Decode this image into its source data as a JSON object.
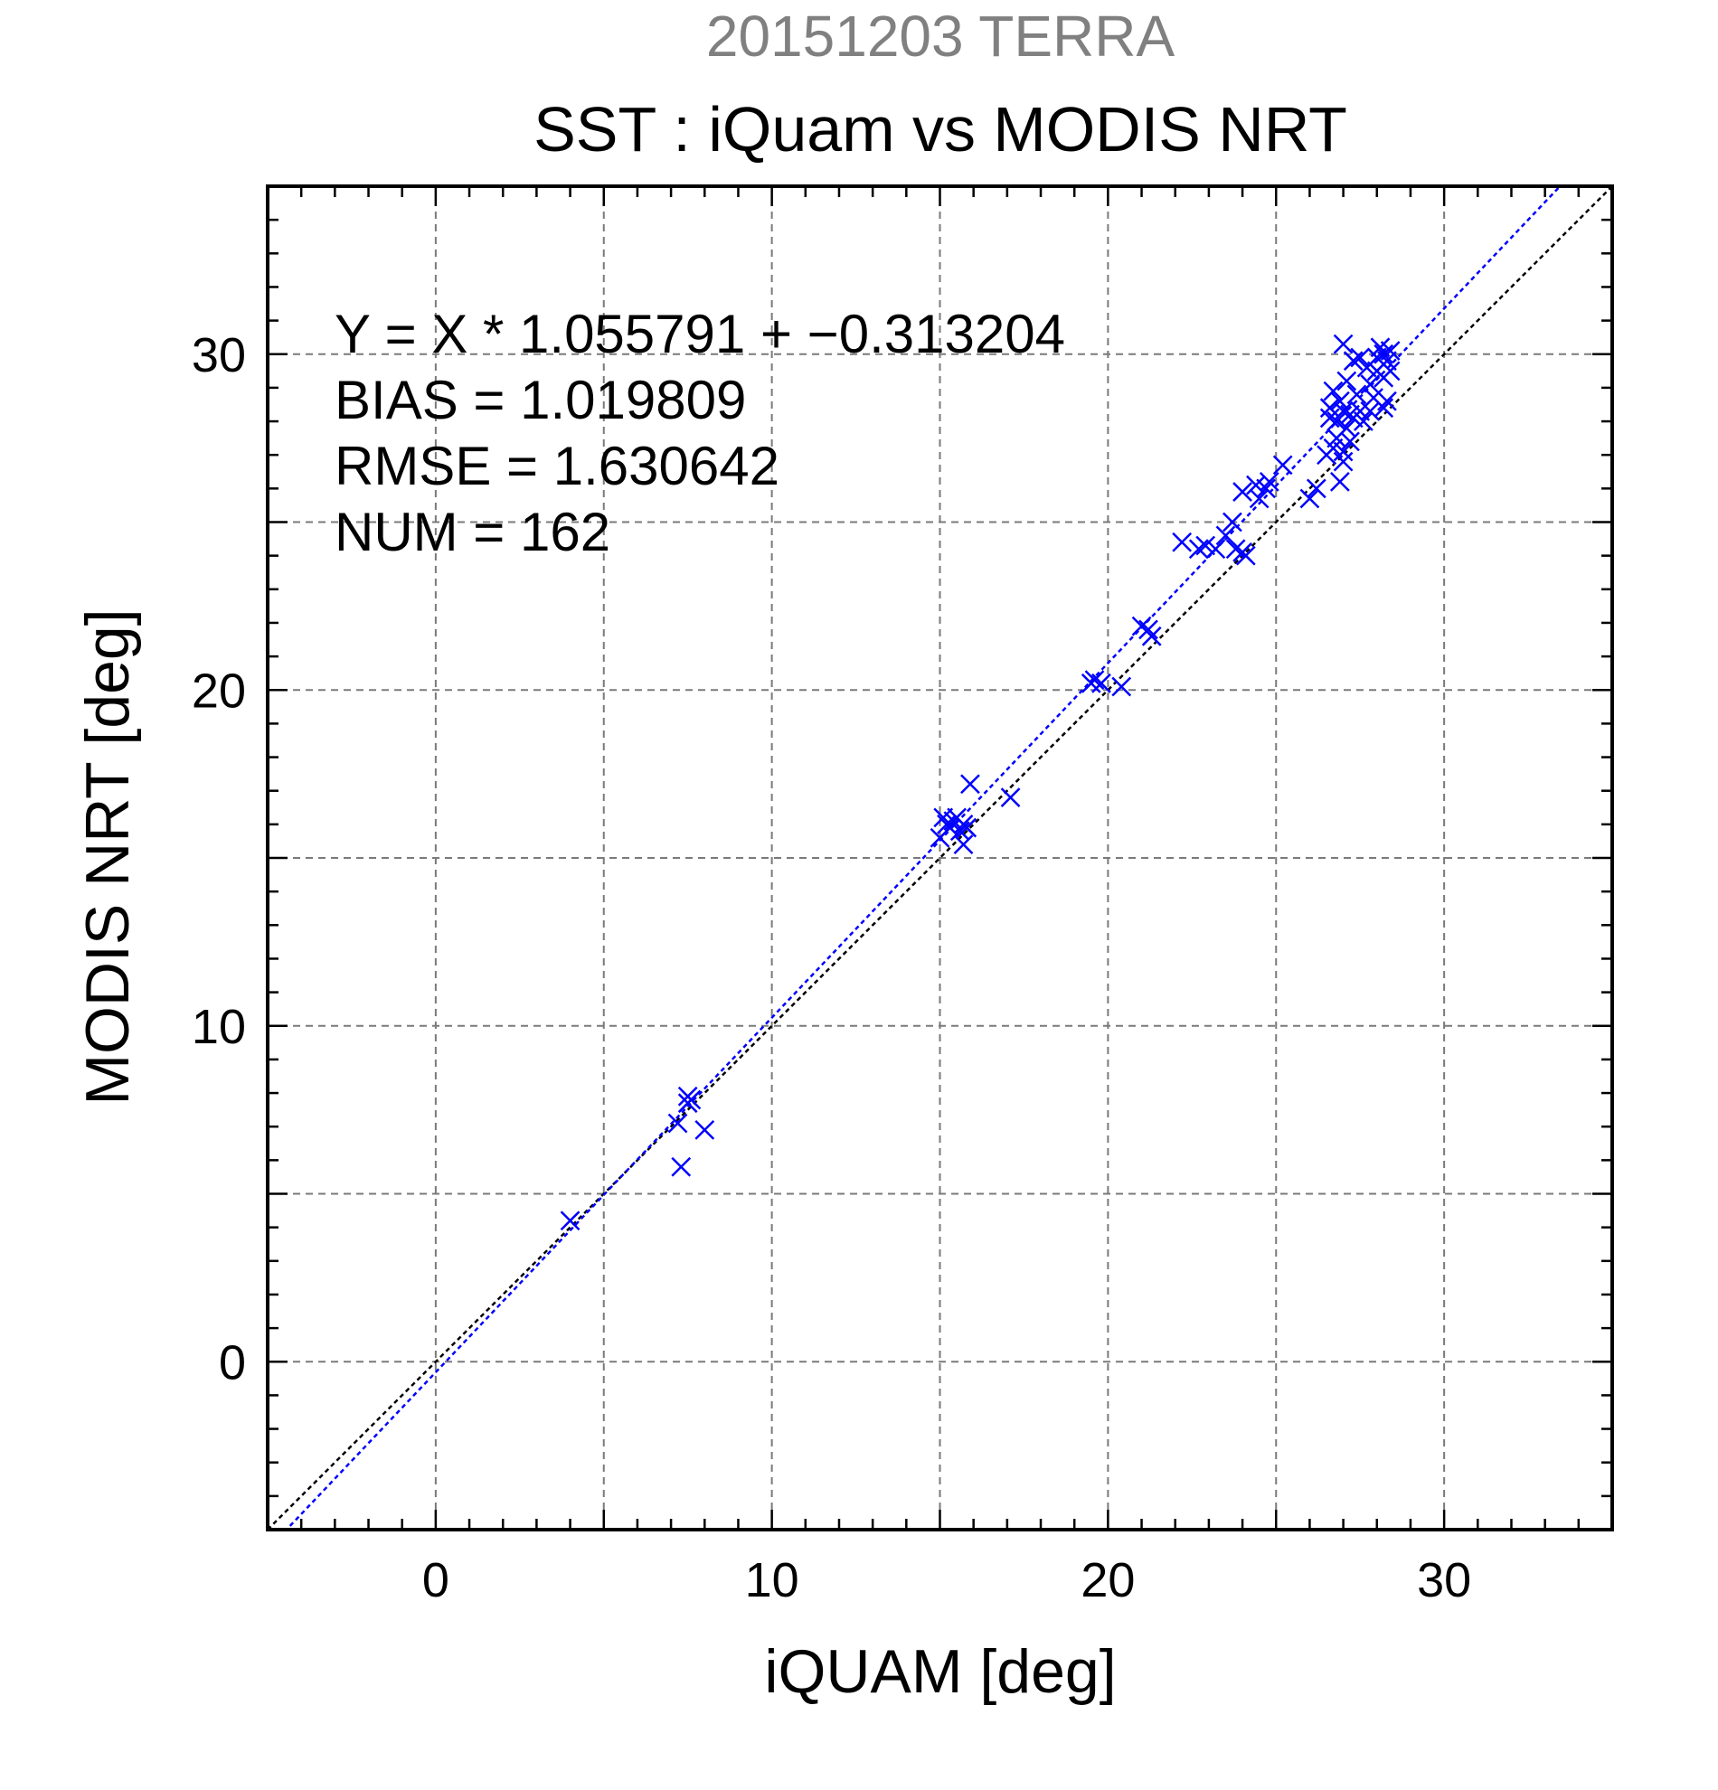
{
  "chart_data": {
    "type": "scatter",
    "subtitle": "20151203 TERRA",
    "title": "SST : iQuam vs MODIS NRT",
    "xlabel": "iQUAM [deg]",
    "ylabel": "MODIS NRT [deg]",
    "xlim": [
      -5,
      35
    ],
    "ylim": [
      -5,
      35
    ],
    "xticks": [
      0,
      10,
      20,
      30
    ],
    "yticks": [
      0,
      10,
      20,
      30
    ],
    "grid": true,
    "annotations": [
      "Y = X * 1.055791 + −0.313204",
      "BIAS = 1.019809",
      "RMSE = 1.630642",
      "NUM = 162"
    ],
    "colors": {
      "points": "#0000ff",
      "fit_line": "#0000ff",
      "identity_line": "#000000",
      "subtitle": "#808080"
    },
    "fit": {
      "slope": 1.055791,
      "intercept": -0.313204
    },
    "points": [
      [
        4.0,
        4.2
      ],
      [
        7.2,
        7.1
      ],
      [
        7.3,
        5.8
      ],
      [
        7.5,
        7.9
      ],
      [
        7.5,
        7.7
      ],
      [
        7.6,
        7.8
      ],
      [
        8.0,
        6.9
      ],
      [
        15.0,
        15.6
      ],
      [
        15.1,
        16.2
      ],
      [
        15.2,
        16.0
      ],
      [
        15.3,
        15.9
      ],
      [
        15.4,
        16.1
      ],
      [
        15.5,
        16.2
      ],
      [
        15.6,
        15.8
      ],
      [
        15.7,
        15.4
      ],
      [
        15.7,
        16.0
      ],
      [
        15.8,
        15.9
      ],
      [
        15.9,
        17.2
      ],
      [
        17.1,
        16.8
      ],
      [
        19.5,
        20.2
      ],
      [
        19.6,
        20.3
      ],
      [
        19.8,
        20.2
      ],
      [
        20.4,
        20.1
      ],
      [
        21.0,
        21.9
      ],
      [
        21.2,
        21.8
      ],
      [
        21.3,
        21.6
      ],
      [
        22.2,
        24.4
      ],
      [
        22.7,
        24.2
      ],
      [
        22.9,
        24.3
      ],
      [
        23.2,
        24.2
      ],
      [
        23.5,
        24.6
      ],
      [
        23.7,
        25.0
      ],
      [
        23.8,
        24.2
      ],
      [
        24.0,
        24.1
      ],
      [
        24.1,
        24.0
      ],
      [
        24.0,
        25.9
      ],
      [
        24.4,
        26.1
      ],
      [
        24.5,
        25.7
      ],
      [
        24.7,
        26.0
      ],
      [
        24.8,
        26.2
      ],
      [
        25.2,
        26.7
      ],
      [
        26.0,
        25.7
      ],
      [
        26.2,
        26.0
      ],
      [
        26.5,
        27.0
      ],
      [
        26.6,
        28.1
      ],
      [
        26.6,
        28.4
      ],
      [
        26.7,
        27.2
      ],
      [
        26.7,
        28.9
      ],
      [
        26.8,
        28.0
      ],
      [
        26.8,
        27.5
      ],
      [
        26.9,
        26.2
      ],
      [
        26.9,
        28.6
      ],
      [
        27.0,
        27.1
      ],
      [
        27.0,
        26.8
      ],
      [
        27.0,
        28.3
      ],
      [
        27.0,
        30.3
      ],
      [
        27.1,
        27.8
      ],
      [
        27.1,
        29.2
      ],
      [
        27.2,
        28.2
      ],
      [
        27.2,
        27.4
      ],
      [
        27.3,
        29.8
      ],
      [
        27.3,
        28.1
      ],
      [
        27.4,
        28.8
      ],
      [
        27.5,
        29.9
      ],
      [
        27.5,
        28.3
      ],
      [
        27.6,
        28.0
      ],
      [
        27.7,
        29.6
      ],
      [
        27.8,
        28.3
      ],
      [
        27.8,
        29.1
      ],
      [
        27.9,
        28.7
      ],
      [
        28.0,
        29.5
      ],
      [
        28.0,
        29.9
      ],
      [
        28.1,
        30.2
      ],
      [
        28.2,
        30.0
      ],
      [
        28.2,
        28.4
      ],
      [
        28.2,
        29.3
      ],
      [
        28.3,
        29.8
      ],
      [
        28.3,
        28.6
      ],
      [
        28.4,
        30.1
      ],
      [
        28.4,
        29.5
      ]
    ]
  }
}
